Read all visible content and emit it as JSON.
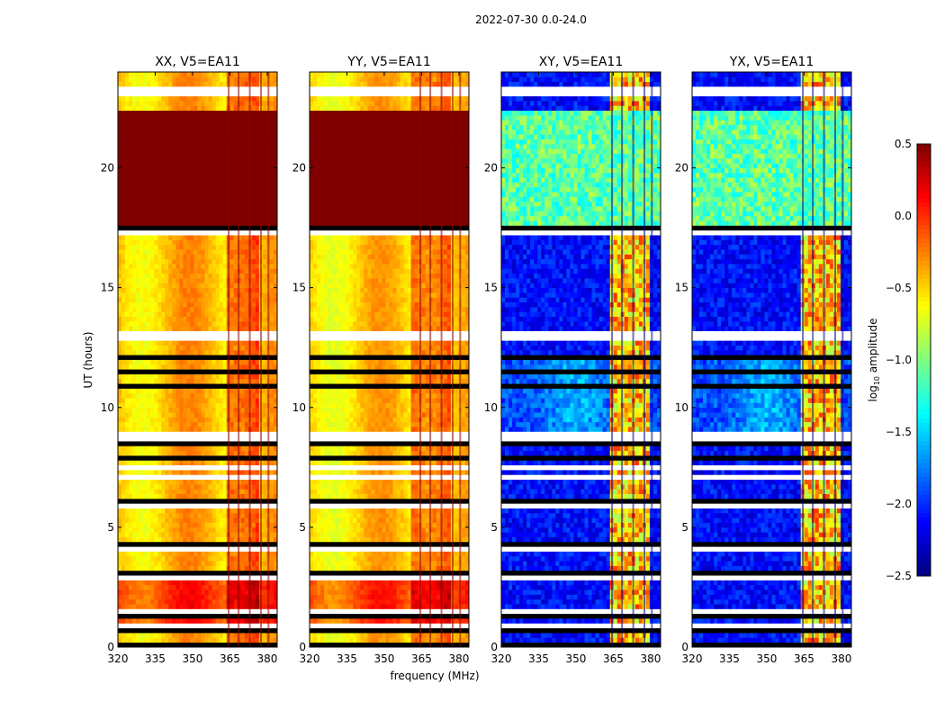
{
  "figure": {
    "suptitle": "2022-07-30 0.0-24.0",
    "xlabel": "frequency (MHz)",
    "ylabel": "UT (hours)",
    "colorbar_label_prefix": "log",
    "colorbar_label_sub": "10",
    "colorbar_label_suffix": " amplitude"
  },
  "chart_data": {
    "type": "heatmap",
    "colormap": "jet",
    "xlim": [
      320,
      384
    ],
    "ylim": [
      0,
      24
    ],
    "x_ticks": [
      320,
      335,
      350,
      365,
      380
    ],
    "x_tick_labels": [
      "320",
      "335",
      "350",
      "365",
      "380"
    ],
    "y_ticks": [
      0,
      5,
      10,
      15,
      20
    ],
    "y_tick_labels": [
      "0",
      "5",
      "10",
      "15",
      "20"
    ],
    "clim": [
      -2.5,
      0.5
    ],
    "colorbar_ticks": [
      0.5,
      0.0,
      -0.5,
      -1.0,
      -1.5,
      -2.0,
      -2.5
    ],
    "colorbar_tick_labels": [
      "0.5",
      "0.0",
      "−0.5",
      "−1.0",
      "−1.5",
      "−2.0",
      "−2.5"
    ],
    "panels": [
      {
        "title": "XX, V5=EA11",
        "kind": "parallel",
        "base": -0.45,
        "bright_band": [
          363,
          376
        ]
      },
      {
        "title": "YY, V5=EA11",
        "kind": "parallel",
        "base": -0.5,
        "bright_band": [
          361,
          376
        ]
      },
      {
        "title": "XY, V5=EA11",
        "kind": "cross",
        "base": -2.3,
        "bright_band": [
          364,
          379
        ]
      },
      {
        "title": "YX, V5=EA11",
        "kind": "cross",
        "base": -2.3,
        "bright_band": [
          364,
          379
        ]
      }
    ],
    "blank_rows_hours": [
      0.1,
      0.65,
      0.75,
      0.95,
      1.3,
      1.45,
      2.8,
      2.95,
      3.15,
      4.1,
      4.3,
      5.6,
      5.85,
      6.1,
      7.05,
      7.45,
      7.95,
      8.45,
      8.55,
      8.7,
      8.85,
      10.9,
      11.55,
      12.1,
      12.4,
      12.9,
      13.15,
      16.2,
      16.6,
      17.3,
      17.55,
      22.4,
      22.6,
      23.05,
      23.3
    ],
    "saturated_interval_hours": [
      17.6,
      22.3
    ],
    "hot_interval_hours": [
      0.75,
      3.15
    ],
    "rfi_channels_mhz": [
      364.5,
      368.5,
      373.0,
      377.5,
      380.5
    ]
  }
}
